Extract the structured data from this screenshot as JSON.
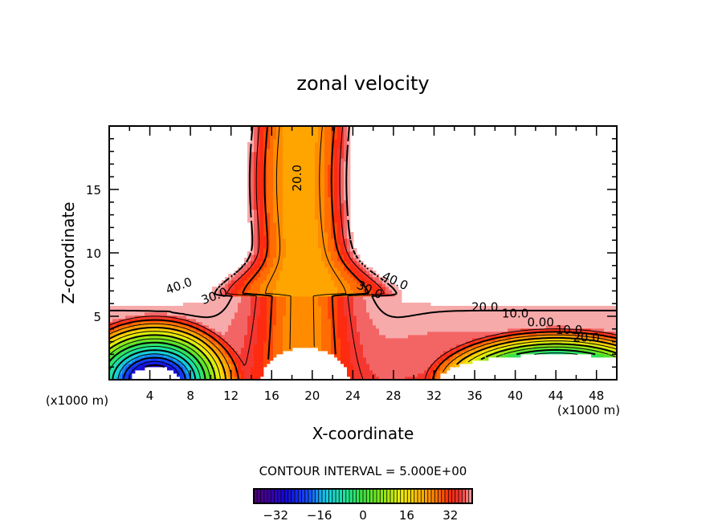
{
  "chart_data": {
    "type": "heatmap",
    "subtype": "filled-contour",
    "title": "zonal velocity",
    "xlabel": "X-coordinate",
    "ylabel": "Z-coordinate",
    "x_unit_left": "(x1000 m)",
    "x_unit_right": "(x1000 m)",
    "xlim": [
      0,
      50
    ],
    "ylim": [
      0,
      20
    ],
    "x_ticks": [
      4,
      8,
      12,
      16,
      20,
      24,
      28,
      32,
      36,
      40,
      44,
      48
    ],
    "y_ticks": [
      5,
      10,
      15
    ],
    "contour_interval_label": "CONTOUR INTERVAL = 5.000E+00",
    "contour_interval": 5.0,
    "contour_labels": [
      {
        "text": "40.0",
        "x": 7.0,
        "z": 7.1
      },
      {
        "text": "30.0",
        "x": 10.5,
        "z": 6.3
      },
      {
        "text": "20.0",
        "x": 18.9,
        "z": 15.9
      },
      {
        "text": "30.0",
        "x": 25.5,
        "z": 6.8
      },
      {
        "text": "40.0",
        "x": 28.0,
        "z": 7.5
      },
      {
        "text": "20.0",
        "x": 37.0,
        "z": 5.4
      },
      {
        "text": "10.0",
        "x": 40.0,
        "z": 4.9
      },
      {
        "text": "0.00",
        "x": 42.5,
        "z": 4.2
      },
      {
        "text": "10.0",
        "x": 45.3,
        "z": 3.6
      },
      {
        "text": "20.0",
        "x": 47.0,
        "z": 3.0
      }
    ],
    "colorbar": {
      "min": -40,
      "max": 40,
      "tick_labels": [
        "-32",
        "-16",
        "0",
        "16",
        "32"
      ],
      "tick_values": [
        -32,
        -16,
        0,
        16,
        32
      ],
      "colormap": "rainbow (purple-blue-cyan-green-yellow-orange-red-pink)"
    },
    "grid": false,
    "colors": {
      "negative_extreme": "#5a0a8c",
      "blue": "#1a1aff",
      "cyan": "#1ad7e6",
      "green": "#3ee03e",
      "yellow": "#f2f20a",
      "orange": "#ff9a00",
      "red": "#ff2a10",
      "pink_extreme": "#f7a0a0"
    }
  }
}
